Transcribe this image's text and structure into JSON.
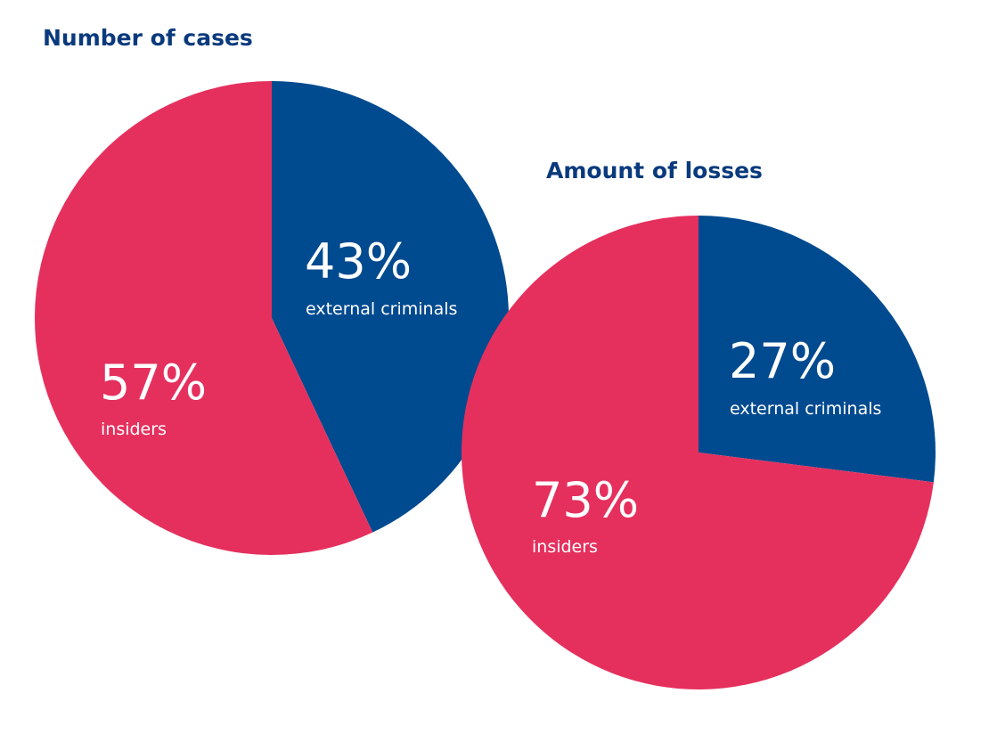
{
  "chart_data": [
    {
      "type": "pie",
      "title": "Number of cases",
      "categories": [
        "external criminals",
        "insiders"
      ],
      "values": [
        43,
        57
      ],
      "value_labels": [
        "43%",
        "57%"
      ],
      "colors": [
        "#004a8f",
        "#e5305e"
      ]
    },
    {
      "type": "pie",
      "title": "Amount of losses",
      "categories": [
        "external criminals",
        "insiders"
      ],
      "values": [
        27,
        73
      ],
      "value_labels": [
        "27%",
        "73%"
      ],
      "colors": [
        "#004a8f",
        "#e5305e"
      ]
    }
  ]
}
